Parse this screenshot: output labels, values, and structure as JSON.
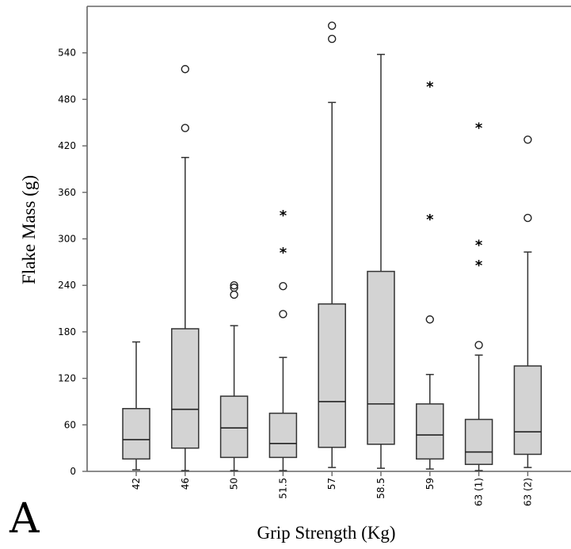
{
  "panel_label": "A",
  "chart_data": {
    "type": "box",
    "xlabel": "Grip Strength (Kg)",
    "ylabel": "Flake Mass (g)",
    "ylim": [
      0,
      600
    ],
    "yticks": [
      0,
      60,
      120,
      180,
      240,
      300,
      360,
      420,
      480,
      540
    ],
    "grid": false,
    "colors": {
      "box_fill": "#d3d3d3",
      "stroke": "#333333"
    },
    "categories": [
      "42",
      "46",
      "50",
      "51.5",
      "57",
      "58.5",
      "59",
      "63 (1)",
      "63 (2)"
    ],
    "boxes": [
      {
        "category": "42",
        "min": 2,
        "q1": 16,
        "median": 41,
        "q3": 81,
        "max": 167,
        "outliers": [],
        "extremes": []
      },
      {
        "category": "46",
        "min": 1,
        "q1": 30,
        "median": 80,
        "q3": 184,
        "max": 405,
        "outliers": [
          443,
          519
        ],
        "extremes": []
      },
      {
        "category": "50",
        "min": 1,
        "q1": 18,
        "median": 56,
        "q3": 97,
        "max": 188,
        "outliers": [
          228,
          237,
          240
        ],
        "extremes": []
      },
      {
        "category": "51.5",
        "min": 1,
        "q1": 18,
        "median": 36,
        "q3": 75,
        "max": 147,
        "outliers": [
          203,
          239
        ],
        "extremes": [
          282,
          330
        ]
      },
      {
        "category": "57",
        "min": 5,
        "q1": 31,
        "median": 90,
        "q3": 216,
        "max": 476,
        "outliers": [
          558,
          575
        ],
        "extremes": []
      },
      {
        "category": "58.5",
        "min": 4,
        "q1": 35,
        "median": 87,
        "q3": 258,
        "max": 538,
        "outliers": [],
        "extremes": []
      },
      {
        "category": "59",
        "min": 3,
        "q1": 16,
        "median": 47,
        "q3": 87,
        "max": 125,
        "outliers": [
          196
        ],
        "extremes": [
          325,
          496
        ]
      },
      {
        "category": "63 (1)",
        "min": 1,
        "q1": 9,
        "median": 25,
        "q3": 67,
        "max": 150,
        "outliers": [
          163
        ],
        "extremes": [
          266,
          292,
          443
        ]
      },
      {
        "category": "63 (2)",
        "min": 5,
        "q1": 22,
        "median": 51,
        "q3": 136,
        "max": 283,
        "outliers": [
          327,
          428
        ],
        "extremes": []
      }
    ]
  }
}
